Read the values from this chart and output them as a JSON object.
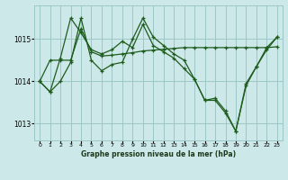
{
  "background_color": "#cde8e8",
  "grid_color": "#9dc8c8",
  "line_color": "#1e5c1e",
  "title": "Graphe pression niveau de la mer (hPa)",
  "ylim": [
    1012.6,
    1015.8
  ],
  "xlim": [
    -0.5,
    23.5
  ],
  "yticks": [
    1013,
    1014,
    1015
  ],
  "xticks": [
    0,
    1,
    2,
    3,
    4,
    5,
    6,
    7,
    8,
    9,
    10,
    11,
    12,
    13,
    14,
    15,
    16,
    17,
    18,
    19,
    20,
    21,
    22,
    23
  ],
  "series1_y": [
    1014.0,
    1013.75,
    1014.55,
    1015.5,
    1015.15,
    1014.75,
    1014.65,
    1014.75,
    1014.95,
    1014.8,
    1015.35,
    1014.85,
    1014.7,
    1014.55,
    1014.3,
    1014.05,
    1013.55,
    1013.55,
    1013.25,
    1012.82,
    1013.95,
    1014.35,
    1014.8,
    1015.05
  ],
  "series2_y": [
    1014.0,
    1014.5,
    1014.5,
    1014.5,
    1015.25,
    1014.7,
    1014.6,
    1014.62,
    1014.65,
    1014.68,
    1014.72,
    1014.74,
    1014.76,
    1014.78,
    1014.8,
    1014.8,
    1014.8,
    1014.8,
    1014.8,
    1014.8,
    1014.8,
    1014.8,
    1014.8,
    1014.82
  ],
  "series3_y": [
    1014.0,
    1013.75,
    1014.0,
    1014.45,
    1015.5,
    1014.5,
    1014.25,
    1014.4,
    1014.45,
    1015.0,
    1015.5,
    1015.05,
    1014.85,
    1014.65,
    1014.5,
    1014.05,
    1013.55,
    1013.6,
    1013.3,
    1012.82,
    1013.9,
    1014.35,
    1014.75,
    1015.05
  ]
}
